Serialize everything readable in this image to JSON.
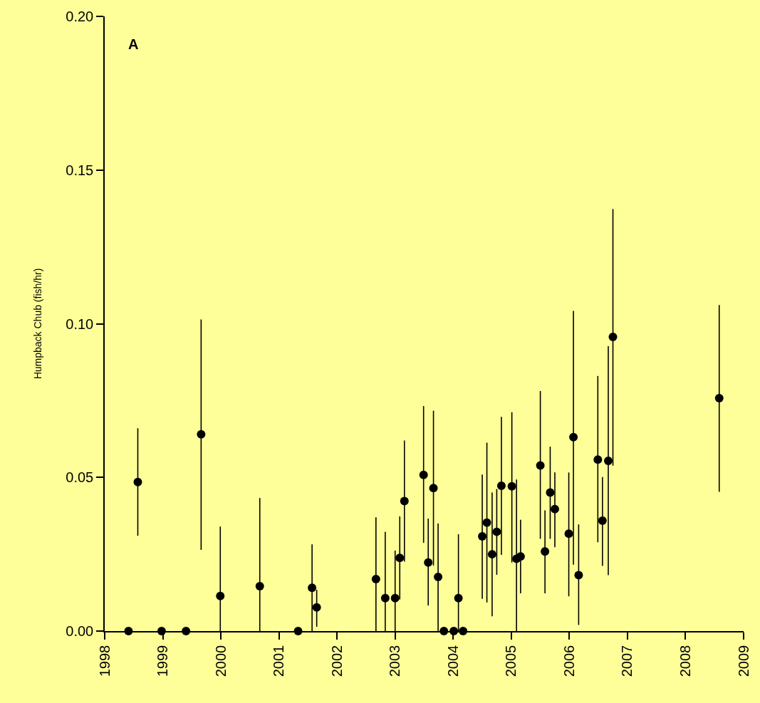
{
  "chart_data": {
    "type": "scatter",
    "ylabel": "Humpback Chub (fish/hr)",
    "annotations": [
      "A"
    ],
    "xlim": [
      1998,
      2009
    ],
    "xticks": [
      1998,
      1999,
      2000,
      2001,
      2002,
      2003,
      2004,
      2005,
      2006,
      2007,
      2008,
      2009
    ],
    "ylim": [
      0,
      0.2
    ],
    "yticks": [
      {
        "value": 0,
        "label": "0.00"
      },
      {
        "value": 0.05,
        "label": "0.05"
      },
      {
        "value": 0.1,
        "label": "0.10"
      },
      {
        "value": 0.15,
        "label": "0.15"
      },
      {
        "value": 0.2,
        "label": "0.20"
      }
    ],
    "grid": false,
    "marker": "circle",
    "series": [
      {
        "color": "#000000",
        "x": [
          1998.41,
          1998.57,
          1998.98,
          1999.4,
          1999.66,
          1999.99,
          2000.67,
          2001.33,
          2001.57,
          2001.65,
          2002.67,
          2002.83,
          2003.0,
          2003.08,
          2003.16,
          2003.49,
          2003.57,
          2003.66,
          2003.74,
          2003.84,
          2004.01,
          2004.09,
          2004.17,
          2004.5,
          2004.58,
          2004.67,
          2004.75,
          2004.83,
          2005.01,
          2005.09,
          2005.16,
          2005.5,
          2005.58,
          2005.67,
          2005.75,
          2005.99,
          2006.07,
          2006.16,
          2006.49,
          2006.57,
          2006.67,
          2006.75,
          2008.58
        ],
        "values": [
          0,
          0.0485,
          0,
          0,
          0.064,
          0.0114,
          0.0146,
          0,
          0.0141,
          0.0077,
          0.0169,
          0.0107,
          0.0107,
          0.0238,
          0.0423,
          0.0508,
          0.0223,
          0.0465,
          0.0176,
          0,
          0,
          0.0107,
          0,
          0.0308,
          0.0353,
          0.025,
          0.0323,
          0.0473,
          0.0471,
          0.0235,
          0.0243,
          0.0539,
          0.0259,
          0.0451,
          0.0397,
          0.0317,
          0.0631,
          0.0182,
          0.0558,
          0.0359,
          0.0554,
          0.0957,
          0.0758
        ],
        "errors": [
          null,
          [
            0.031,
            0.066
          ],
          null,
          null,
          [
            0.0264,
            0.1014
          ],
          [
            0,
            0.034
          ],
          [
            0,
            0.0433
          ],
          null,
          [
            0,
            0.0282
          ],
          [
            0.0014,
            0.0134
          ],
          [
            0,
            0.037
          ],
          [
            0,
            0.0323
          ],
          [
            0,
            0.0262
          ],
          [
            0.0103,
            0.0373
          ],
          [
            0.0226,
            0.062
          ],
          [
            0.0287,
            0.0732
          ],
          [
            0.0083,
            0.0366
          ],
          [
            0.0213,
            0.0717
          ],
          [
            0,
            0.035
          ],
          null,
          null,
          [
            0,
            0.0315
          ],
          null,
          [
            0.0105,
            0.0509
          ],
          [
            0.0093,
            0.0613
          ],
          [
            0.0048,
            0.0451
          ],
          [
            0.0183,
            0.0462
          ],
          [
            0.0248,
            0.0697
          ],
          [
            0.0223,
            0.0712
          ],
          [
            0,
            0.0493
          ],
          [
            0.0123,
            0.0362
          ],
          [
            0.03,
            0.0781
          ],
          [
            0.0123,
            0.0393
          ],
          [
            0.03,
            0.06
          ],
          [
            0.0273,
            0.0516
          ],
          [
            0.0113,
            0.0516
          ],
          [
            0.0216,
            0.1042
          ],
          [
            0.002,
            0.0347
          ],
          [
            0.0289,
            0.083
          ],
          [
            0.0212,
            0.0501
          ],
          [
            0.0182,
            0.0927
          ],
          [
            0.0538,
            0.1373
          ],
          [
            0.0453,
            0.1061
          ]
        ]
      }
    ]
  }
}
